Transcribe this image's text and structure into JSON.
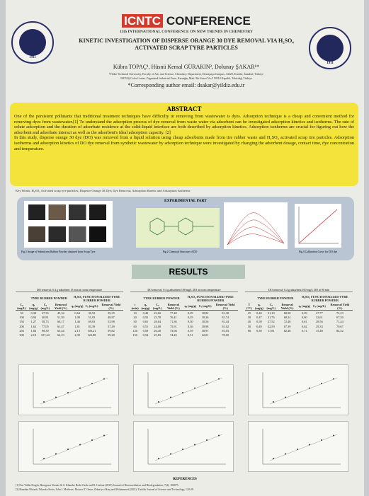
{
  "header": {
    "logo_mark": "ICNTC",
    "logo_word": "CONFERENCE",
    "conference": "11th INTERNATIONAL CONFERENCE ON NEW TRENDS IN CHEMISTRY",
    "title": "KINETIC INVESTIGATION OF DISPERSE ORANGE 30 DYE REMOVAL VIA H₂SO₄ ACTIVATED SCRAP TYRE PARTICLES",
    "authors": "Kübra TOPAÇ¹, Hüsnü Kemal GÜRAKIN², Dolunay ŞAKAR¹*",
    "affiliations": [
      "¹Yildiz Technical University, Faculty of Arts and Science, Chemistry Department, Davutpaşa Campus, 34220, Esenler, İstanbul, Türkiye",
      "²SETAŞ Color Center, Organized Industrial Zone, Karaağaç Mah. 9th Street No:5 59510 Kapaklı, Tekirdağ, Türkiye"
    ],
    "email": "*Corresponding author email: dsakar@yildiz.edu.tr",
    "seal_year": "1911"
  },
  "abstract": {
    "heading": "ABSTRACT",
    "paragraphs": [
      "One of the persistent pollutants that traditional treatment techniques have difficulty in removing from wastewater is dyes. Adsorption technique is a cheap and convenient method for removing dyes from wastewater.[1] To understand the adsorption process of dye removal from waste water via adsorbent can be investigated adsorption kinetics and isotherms. The rate of solute adsorption and the duration of adsorbate residence at the solid-liquid interface are both described by adsorption kinetics. Adsorption isotherms are crucial for figuring out how the adsorbent and adsorbate interact as well as the adsorbent's ideal adsorption capacity. [2]",
      "In this study, disperse orange 30 dye (DO) was removed from a liquid solution using cheap adsorbents made from tire rubber waste and H₂SO₄ activated scrap tire particles. Adsorption isotherms and adsorption kinetics of DO dye removal from synthetic wastewater by adsorption technique were investigated by changing the adsorbent dosage, contact time, dye concentration and temperature."
    ],
    "keywords": "Key Words: H₂SO₄ Activated scrap tyre particles; Disperse Orange 30 Dye; Dye Removal; Adsorption Kinetic and Adsorption Isotherms"
  },
  "experimental": {
    "heading": "EXPERIMENTAL PART",
    "captions": [
      "Fig.1 Image of Submicron Rubber Powder obtained from Scrap Tyre",
      "Fig.2 Chemical Structure of DO",
      "Fig.3 Calibration Curve for DO dye"
    ]
  },
  "results": {
    "heading": "RESULTS",
    "tables": [
      {
        "caption": "DO removal; 0.4 g adsorbent 15 min at room temperature",
        "groups": [
          "TYRE RUBBER POWDER",
          "H₂SO₄ FUNCTIONALIZED TYRE RUBBER POWDER"
        ],
        "columns": [
          "C₀ (mg/L)",
          "qₑ (mg/g)",
          "Cₑ (mg/L)",
          "Removal Yield (%)",
          "qₑ (mg/g)",
          "Cₑ (mg/L)",
          "Removal Yield (%)"
        ],
        "rows": [
          [
            "50",
            "0,38",
            "27,35",
            "45,34",
            "0,64",
            "30,52",
            "39,35"
          ],
          [
            "100",
            "0,94",
            "40,81",
            "51,59",
            "1,09",
            "51,03",
            "48,97"
          ],
          [
            "150",
            "1,27",
            "58,73",
            "60,17",
            "1,46",
            "69,03",
            "53,98"
          ],
          [
            "200",
            "1,63",
            "77,05",
            "61,47",
            "1,81",
            "83,39",
            "57,49"
          ],
          [
            "250",
            "1,84",
            "98,30",
            "63,44",
            "2,13",
            "100,21",
            "59,82"
          ],
          [
            "300",
            "2,18",
            "107,44",
            "64,19",
            "2,39",
            "122,88",
            "59,28"
          ]
        ]
      },
      {
        "caption": "DO removal; 0.4 g adsorbent 100 mg/L DO at room temperature",
        "groups": [
          "TYRE RUBBER POWDER",
          "H₂SO₄ FUNCTIONALIZED TYRE RUBBER POWDER"
        ],
        "columns": [
          "t (min)",
          "qₑ (mg/g)",
          "Cₑ (mg/L)",
          "Removal Yield (%)",
          "qₑ (mg/g)",
          "Cₑ (mg/L)",
          "Removal Yield (%)"
        ],
        "rows": [
          [
            "10",
            "0,48",
            "22,60",
            "77,40",
            "0,29",
            "18,82",
            "81,38"
          ],
          [
            "20",
            "0,55",
            "23,78",
            "76,41",
            "0,29",
            "18,26",
            "81,74"
          ],
          [
            "30",
            "0,61",
            "28,64",
            "71,36",
            "0,30",
            "18,56",
            "81,44"
          ],
          [
            "60",
            "0,51",
            "24,08",
            "75,91",
            "0,36",
            "18,98",
            "81,02"
          ],
          [
            "120",
            "0,59",
            "26,40",
            "73,60",
            "0,39",
            "18,97",
            "81,03"
          ],
          [
            "150",
            "0,54",
            "25,83",
            "74,43",
            "0,51",
            "22,01",
            "78,00"
          ]
        ]
      },
      {
        "caption": "DO removal; 0.4 g adsorbent 100 mg/L DO at 90 min",
        "groups": [
          "TYRE RUBBER POWDER",
          "H₂SO₄ FUNCTIONALIZED TYRE RUBBER POWDER"
        ],
        "columns": [
          "T (°C)",
          "qₑ (mg/g)",
          "Cₑ (mg/L)",
          "Removal Yield (%)",
          "qₑ (mg/g)",
          "Cₑ (mg/L)",
          "Removal Yield (%)"
        ],
        "rows": [
          [
            "25",
            "0,46",
            "31,10",
            "68,90",
            "0,39",
            "27,77",
            "72,23"
          ],
          [
            "30",
            "0,47",
            "31,76",
            "68,24",
            "0,60",
            "32,61",
            "67,39"
          ],
          [
            "40",
            "0,39",
            "27,52",
            "72,48",
            "0,61",
            "28,56",
            "71,44"
          ],
          [
            "50",
            "0,49",
            "32,59",
            "67,39",
            "0,62",
            "29,33",
            "70,67"
          ],
          [
            "60",
            "0,39",
            "17,81",
            "82,48",
            "0,71",
            "15,48",
            "84,52"
          ]
        ]
      }
    ]
  },
  "references": {
    "heading": "REFERENCES",
    "items": [
      "[1] Nur Yildiz Eroglu, Hasegawa Yusuke & S. Kharabe Bedri Ozek and R. Gurbuz (2019) Journal of Bioremediation and Biodegradation, 7(4), 100075.",
      "[2] Hamdan Motaab, Takaoka Keita, John J. Mathews, Moussa T. Omar, Zekeriya Aktaş and Mohammed (2022). Turkish Journal of Science and Technology, 120-28."
    ]
  }
}
